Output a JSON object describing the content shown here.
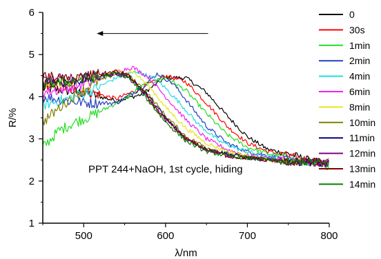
{
  "chart_data": {
    "type": "line",
    "title": "",
    "xlabel": "λ/nm",
    "ylabel": "R/%",
    "xlim": [
      450,
      800
    ],
    "ylim": [
      1,
      6
    ],
    "x_ticks": [
      500,
      600,
      700,
      800
    ],
    "y_ticks": [
      1,
      2,
      3,
      4,
      5,
      6
    ],
    "grid": false,
    "legend_position": "right",
    "annotation": "PPT 244+NaOH, 1st cycle, hiding",
    "arrow_direction": "left",
    "series": [
      {
        "name": "0",
        "color": "#000000",
        "x": [
          450,
          480,
          510,
          540,
          570,
          600,
          625,
          650,
          675,
          700,
          725,
          750,
          775,
          800
        ],
        "y": [
          4.2,
          4.15,
          4.05,
          3.9,
          4.05,
          4.45,
          4.45,
          4.1,
          3.55,
          3.05,
          2.75,
          2.65,
          2.5,
          2.4
        ]
      },
      {
        "name": "30s",
        "color": "#ff0000",
        "x": [
          450,
          480,
          510,
          540,
          570,
          600,
          625,
          650,
          675,
          700,
          725,
          750,
          775,
          800
        ],
        "y": [
          4.3,
          4.2,
          4.1,
          3.95,
          4.2,
          4.5,
          4.35,
          3.85,
          3.3,
          2.9,
          2.7,
          2.6,
          2.5,
          2.4
        ]
      },
      {
        "name": "1min",
        "color": "#22dd22",
        "x": [
          450,
          470,
          490,
          510,
          530,
          550,
          575,
          600,
          625,
          650,
          675,
          700,
          725,
          750,
          775,
          800
        ],
        "y": [
          2.8,
          3.2,
          3.4,
          3.55,
          3.75,
          3.95,
          4.3,
          4.45,
          4.15,
          3.6,
          3.1,
          2.8,
          2.65,
          2.55,
          2.45,
          2.35
        ]
      },
      {
        "name": "2min",
        "color": "#1f3fbf",
        "x": [
          450,
          480,
          510,
          540,
          570,
          590,
          610,
          630,
          650,
          675,
          700,
          725,
          750,
          775,
          800
        ],
        "y": [
          4.0,
          3.9,
          3.85,
          3.85,
          4.2,
          4.55,
          4.3,
          3.8,
          3.3,
          2.9,
          2.7,
          2.6,
          2.5,
          2.45,
          2.4
        ]
      },
      {
        "name": "4min",
        "color": "#22dddd",
        "x": [
          450,
          480,
          510,
          540,
          565,
          590,
          615,
          640,
          665,
          690,
          720,
          750,
          775,
          800
        ],
        "y": [
          3.8,
          3.95,
          4.15,
          4.45,
          4.6,
          4.4,
          3.9,
          3.35,
          2.95,
          2.75,
          2.6,
          2.5,
          2.45,
          2.4
        ]
      },
      {
        "name": "6min",
        "color": "#ee22ee",
        "x": [
          450,
          480,
          510,
          540,
          560,
          580,
          600,
          625,
          650,
          675,
          700,
          725,
          750,
          775,
          800
        ],
        "y": [
          4.1,
          4.2,
          4.35,
          4.6,
          4.7,
          4.45,
          4.0,
          3.45,
          3.0,
          2.75,
          2.6,
          2.55,
          2.5,
          2.45,
          2.4
        ]
      },
      {
        "name": "8min",
        "color": "#e6e61a",
        "x": [
          450,
          480,
          510,
          540,
          560,
          580,
          600,
          625,
          650,
          675,
          700,
          725,
          750,
          775,
          800
        ],
        "y": [
          4.3,
          4.35,
          4.45,
          4.6,
          4.6,
          4.25,
          3.75,
          3.25,
          2.9,
          2.7,
          2.6,
          2.5,
          2.45,
          2.45,
          2.4
        ]
      },
      {
        "name": "10min",
        "color": "#808000",
        "x": [
          450,
          480,
          510,
          540,
          555,
          575,
          600,
          625,
          650,
          675,
          700,
          725,
          750,
          775,
          800
        ],
        "y": [
          3.4,
          3.9,
          4.3,
          4.55,
          4.5,
          4.15,
          3.55,
          3.05,
          2.8,
          2.65,
          2.55,
          2.5,
          2.45,
          2.45,
          2.4
        ]
      },
      {
        "name": "11min",
        "color": "#000080",
        "x": [
          450,
          480,
          510,
          540,
          555,
          575,
          600,
          625,
          650,
          675,
          700,
          725,
          750,
          775,
          800
        ],
        "y": [
          4.35,
          4.35,
          4.45,
          4.55,
          4.5,
          4.1,
          3.5,
          3.0,
          2.75,
          2.65,
          2.55,
          2.5,
          2.45,
          2.45,
          2.4
        ]
      },
      {
        "name": "12min",
        "color": "#800080",
        "x": [
          450,
          480,
          510,
          540,
          555,
          575,
          600,
          625,
          650,
          675,
          700,
          725,
          750,
          775,
          800
        ],
        "y": [
          4.4,
          4.4,
          4.5,
          4.55,
          4.45,
          4.05,
          3.45,
          3.0,
          2.75,
          2.6,
          2.55,
          2.5,
          2.45,
          2.45,
          2.4
        ]
      },
      {
        "name": "13min",
        "color": "#800000",
        "x": [
          450,
          480,
          510,
          540,
          555,
          575,
          600,
          625,
          650,
          675,
          700,
          725,
          750,
          775,
          800
        ],
        "y": [
          4.5,
          4.4,
          4.5,
          4.6,
          4.5,
          4.05,
          3.45,
          3.0,
          2.75,
          2.6,
          2.55,
          2.5,
          2.45,
          2.45,
          2.45
        ]
      },
      {
        "name": "14min",
        "color": "#008000",
        "x": [
          450,
          480,
          510,
          540,
          555,
          575,
          600,
          625,
          650,
          675,
          700,
          725,
          750,
          775,
          800
        ],
        "y": [
          4.3,
          4.35,
          4.45,
          4.55,
          4.45,
          4.0,
          3.4,
          2.95,
          2.7,
          2.6,
          2.55,
          2.5,
          2.45,
          2.45,
          2.4
        ]
      }
    ]
  }
}
